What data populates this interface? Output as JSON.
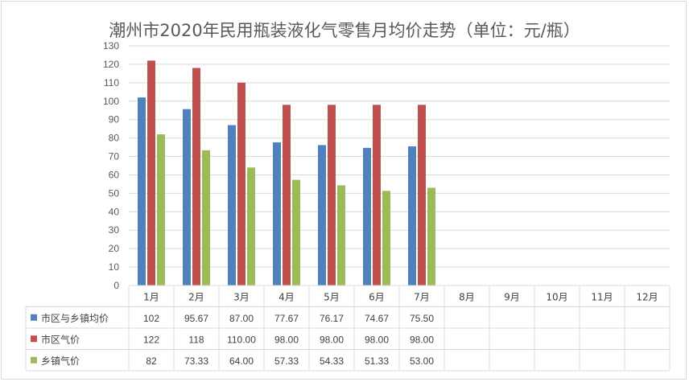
{
  "chart_data": {
    "type": "bar",
    "title": "潮州市2020年民用瓶装液化气零售月均价走势（单位：元/瓶）",
    "categories": [
      "1月",
      "2月",
      "3月",
      "4月",
      "5月",
      "6月",
      "7月",
      "8月",
      "9月",
      "10月",
      "11月",
      "12月"
    ],
    "ylim": [
      0,
      130
    ],
    "yticks": [
      0,
      10,
      20,
      30,
      40,
      50,
      60,
      70,
      80,
      90,
      100,
      110,
      120,
      130
    ],
    "grid": true,
    "legend": "data-table",
    "series": [
      {
        "name": "市区与乡镇均价",
        "color": "#4f81bd",
        "values": [
          102,
          95.67,
          87.0,
          77.67,
          76.17,
          74.67,
          75.5,
          null,
          null,
          null,
          null,
          null
        ],
        "labels": [
          "102",
          "95.67",
          "87.00",
          "77.67",
          "76.17",
          "74.67",
          "75.50",
          "",
          "",
          "",
          "",
          ""
        ]
      },
      {
        "name": "市区气价",
        "color": "#c0504d",
        "values": [
          122,
          118,
          110.0,
          98.0,
          98.0,
          98.0,
          98.0,
          null,
          null,
          null,
          null,
          null
        ],
        "labels": [
          "122",
          "118",
          "110.00",
          "98.00",
          "98.00",
          "98.00",
          "98.00",
          "",
          "",
          "",
          "",
          ""
        ]
      },
      {
        "name": "乡镇气价",
        "color": "#9bbb59",
        "values": [
          82,
          73.33,
          64.0,
          57.33,
          54.33,
          51.33,
          53.0,
          null,
          null,
          null,
          null,
          null
        ],
        "labels": [
          "82",
          "73.33",
          "64.00",
          "57.33",
          "54.33",
          "51.33",
          "53.00",
          "",
          "",
          "",
          "",
          ""
        ]
      }
    ]
  }
}
